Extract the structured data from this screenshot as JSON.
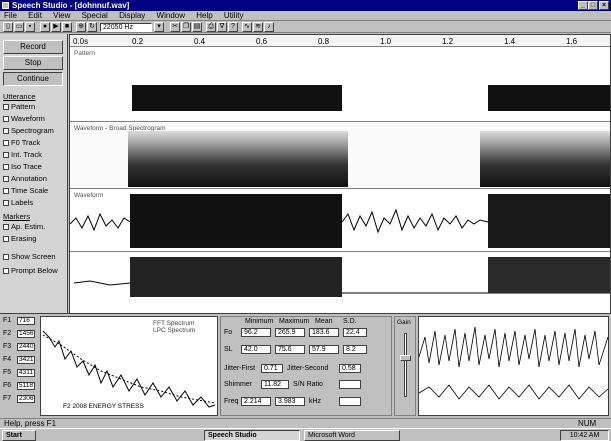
{
  "window": {
    "title": "Speech Studio - [dohnnuf.wav]"
  },
  "menu": [
    "File",
    "Edit",
    "View",
    "Special",
    "Display",
    "Window",
    "Help",
    "Utility"
  ],
  "toolbar": {
    "rate": "22050 Hz"
  },
  "left": {
    "buttons": [
      "Record",
      "Stop",
      "Continue"
    ],
    "section1": "Utterance",
    "options1": [
      "Pattern",
      "Waveform",
      "Spectrogram",
      "F0 Track",
      "Int. Track",
      "Iso Trace",
      "Annotation",
      "Time Scale",
      "Labels"
    ],
    "section2": "Markers",
    "options2": [
      "Ap. Estim.",
      "Erasing"
    ],
    "extras": [
      "Show Screen",
      "Prompt Below"
    ]
  },
  "ruler": [
    "0.0s",
    "0.2",
    "0.4",
    "0.6",
    "0.8",
    "1.0",
    "1.2",
    "1.4",
    "1.6"
  ],
  "panes": {
    "p1": "Pattern",
    "p2": "Waveform - Broad Spectrogram",
    "p3": "Waveform"
  },
  "bottom": {
    "rows": [
      {
        "lbl": "F1",
        "val": "716"
      },
      {
        "lbl": "F2",
        "val": "1456"
      },
      {
        "lbl": "F3",
        "val": "2440"
      },
      {
        "lbl": "F4",
        "val": "3421"
      },
      {
        "lbl": "F5",
        "val": "4311"
      },
      {
        "lbl": "F6",
        "val": "5118"
      },
      {
        "lbl": "F7",
        "val": "2306"
      }
    ],
    "spec_legend": [
      "FFT Spectrum",
      "LPC Spectrum"
    ],
    "spec_caption": "F2 2008 ENERGY STRESS",
    "stats_header": [
      "Minimum",
      "Maximum",
      "Mean",
      "S.D."
    ],
    "stats": [
      {
        "lbl": "Fo",
        "vals": [
          "96.2",
          "265.9",
          "183.6",
          "22.4"
        ]
      },
      {
        "lbl": "SL",
        "vals": [
          "42.0",
          "75.6",
          "57.9",
          "8.2"
        ]
      }
    ],
    "jitter_lbl": "Jitter-First",
    "jitter_val": "0.71",
    "jitter2_lbl": "Jitter-Second",
    "jitter2_val": "0.58",
    "shimmer_lbl": "Shimmer",
    "shimmer_val": "11.82",
    "snr_lbl": "S/N Ratio",
    "freq_lbl": "Freq",
    "freq_val": "2.214",
    "freq_val2": "3.983",
    "freq_unit": "kHz",
    "ctl_label": "Gain"
  },
  "status": {
    "left": "Help, press F1",
    "right": "NUM"
  },
  "taskbar": {
    "start": "Start",
    "items": [
      "Speech Studio",
      "Microsoft Word"
    ],
    "clock": "10:42 AM"
  }
}
